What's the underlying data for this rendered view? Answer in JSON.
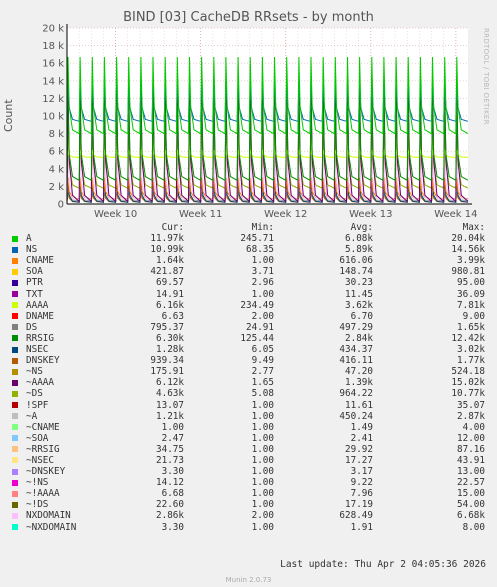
{
  "title": "BIND [03] CacheDB RRsets - by month",
  "side_label": "RRDTOOL / TOBI OETIKER",
  "last_update": "Last update: Thu Apr  2 04:05:36 2026",
  "footer": "Munin 2.0.73",
  "legend_header": {
    "cur": "Cur:",
    "min": "Min:",
    "avg": "Avg:",
    "max": "Max:"
  },
  "legend": [
    {
      "name": "A",
      "color": "#00cc00",
      "cur": "11.97k",
      "min": "245.71",
      "avg": "6.08k",
      "max": "20.04k"
    },
    {
      "name": "NS",
      "color": "#0066b3",
      "cur": "10.99k",
      "min": "68.35",
      "avg": "5.89k",
      "max": "14.56k"
    },
    {
      "name": "CNAME",
      "color": "#ff8000",
      "cur": "1.64k",
      "min": "1.00",
      "avg": "616.06",
      "max": "3.99k"
    },
    {
      "name": "SOA",
      "color": "#ffcc00",
      "cur": "421.87",
      "min": "3.71",
      "avg": "148.74",
      "max": "980.81"
    },
    {
      "name": "PTR",
      "color": "#330099",
      "cur": "69.57",
      "min": "2.96",
      "avg": "30.23",
      "max": "95.00"
    },
    {
      "name": "TXT",
      "color": "#990099",
      "cur": "14.91",
      "min": "1.00",
      "avg": "11.45",
      "max": "36.09"
    },
    {
      "name": "AAAA",
      "color": "#ccff00",
      "cur": "6.16k",
      "min": "234.49",
      "avg": "3.62k",
      "max": "7.81k"
    },
    {
      "name": "DNAME",
      "color": "#ff0000",
      "cur": "6.63",
      "min": "2.00",
      "avg": "6.70",
      "max": "9.00"
    },
    {
      "name": "DS",
      "color": "#808080",
      "cur": "795.37",
      "min": "24.91",
      "avg": "497.29",
      "max": "1.65k"
    },
    {
      "name": "RRSIG",
      "color": "#008f00",
      "cur": "6.30k",
      "min": "125.44",
      "avg": "2.84k",
      "max": "12.42k"
    },
    {
      "name": "NSEC",
      "color": "#00487d",
      "cur": "1.28k",
      "min": "6.05",
      "avg": "434.37",
      "max": "3.02k"
    },
    {
      "name": "DNSKEY",
      "color": "#b35a00",
      "cur": "939.34",
      "min": "9.49",
      "avg": "416.11",
      "max": "1.77k"
    },
    {
      "name": "~NS",
      "color": "#b38f00",
      "cur": "175.91",
      "min": "2.77",
      "avg": "47.20",
      "max": "524.18"
    },
    {
      "name": "~AAAA",
      "color": "#6b006b",
      "cur": "6.12k",
      "min": "1.65",
      "avg": "1.39k",
      "max": "15.02k"
    },
    {
      "name": "~DS",
      "color": "#8fb300",
      "cur": "4.63k",
      "min": "5.08",
      "avg": "964.22",
      "max": "10.77k"
    },
    {
      "name": "!SPF",
      "color": "#b30000",
      "cur": "13.07",
      "min": "1.00",
      "avg": "11.61",
      "max": "35.07"
    },
    {
      "name": "~A",
      "color": "#bebebe",
      "cur": "1.21k",
      "min": "1.00",
      "avg": "450.24",
      "max": "2.87k"
    },
    {
      "name": "~CNAME",
      "color": "#80ff80",
      "cur": "1.00",
      "min": "1.00",
      "avg": "1.49",
      "max": "4.00"
    },
    {
      "name": "~SOA",
      "color": "#80c9ff",
      "cur": "2.47",
      "min": "1.00",
      "avg": "2.41",
      "max": "12.00"
    },
    {
      "name": "~RRSIG",
      "color": "#ffc080",
      "cur": "34.75",
      "min": "1.00",
      "avg": "29.92",
      "max": "87.16"
    },
    {
      "name": "~NSEC",
      "color": "#ffe680",
      "cur": "21.73",
      "min": "1.00",
      "avg": "17.27",
      "max": "43.91"
    },
    {
      "name": "~DNSKEY",
      "color": "#aa80ff",
      "cur": "3.30",
      "min": "1.00",
      "avg": "3.17",
      "max": "13.00"
    },
    {
      "name": "~!NS",
      "color": "#ee00cc",
      "cur": "14.12",
      "min": "1.00",
      "avg": "9.22",
      "max": "22.57"
    },
    {
      "name": "~!AAAA",
      "color": "#ff8080",
      "cur": "6.68",
      "min": "1.00",
      "avg": "7.96",
      "max": "15.00"
    },
    {
      "name": "~!DS",
      "color": "#666600",
      "cur": "22.60",
      "min": "1.00",
      "avg": "17.19",
      "max": "54.00"
    },
    {
      "name": "NXDOMAIN",
      "color": "#ffbfff",
      "cur": "2.86k",
      "min": "2.00",
      "avg": "628.49",
      "max": "6.68k"
    },
    {
      "name": "~NXDOMAIN",
      "color": "#00ffcc",
      "cur": "3.30",
      "min": "1.00",
      "avg": "1.91",
      "max": "8.00"
    }
  ],
  "chart_data": {
    "type": "line",
    "title": "BIND [03] CacheDB RRsets - by month",
    "xlabel": "",
    "ylabel": "Count",
    "ylim": [
      0,
      20000
    ],
    "y_ticks": [
      0,
      2000,
      4000,
      6000,
      8000,
      10000,
      12000,
      14000,
      16000,
      18000,
      20000
    ],
    "y_tick_labels": [
      "0",
      "2 k",
      "4 k",
      "6 k",
      "8 k",
      "10 k",
      "12 k",
      "14 k",
      "16 k",
      "18 k",
      "20 k"
    ],
    "x_tick_labels": [
      "Week 10",
      "Week 11",
      "Week 12",
      "Week 13",
      "Week 14"
    ],
    "x_range_days": [
      0,
      33
    ],
    "x_tick_days": [
      4,
      11,
      18,
      25,
      32
    ],
    "grid": true,
    "pattern": "daily sawtooth: each day value spikes to a peak then decays to a trough",
    "series": [
      {
        "name": "A",
        "color": "#00cc00",
        "peak": 16700,
        "trough": 8000
      },
      {
        "name": "NS",
        "color": "#0066b3",
        "peak": 13800,
        "trough": 9400
      },
      {
        "name": "RRSIG",
        "color": "#008f00",
        "peak": 11200,
        "trough": 2700
      },
      {
        "name": "AAAA",
        "color": "#ccff00",
        "peak": 6100,
        "trough": 5300
      },
      {
        "name": "~AAAA",
        "color": "#6b006b",
        "peak": 14000,
        "trough": 300
      },
      {
        "name": "~DS",
        "color": "#8fb300",
        "peak": 9500,
        "trough": 1800
      },
      {
        "name": "NXDOMAIN",
        "color": "#ffbfff",
        "peak": 6000,
        "trough": 500
      },
      {
        "name": "CNAME",
        "color": "#ff8000",
        "peak": 3000,
        "trough": 600
      },
      {
        "name": "NSEC",
        "color": "#00487d",
        "peak": 2500,
        "trough": 200
      },
      {
        "name": "~A",
        "color": "#bebebe",
        "peak": 2200,
        "trough": 300
      },
      {
        "name": "DNSKEY",
        "color": "#b35a00",
        "peak": 1500,
        "trough": 200
      },
      {
        "name": "DS",
        "color": "#808080",
        "peak": 1300,
        "trough": 400
      }
    ]
  }
}
